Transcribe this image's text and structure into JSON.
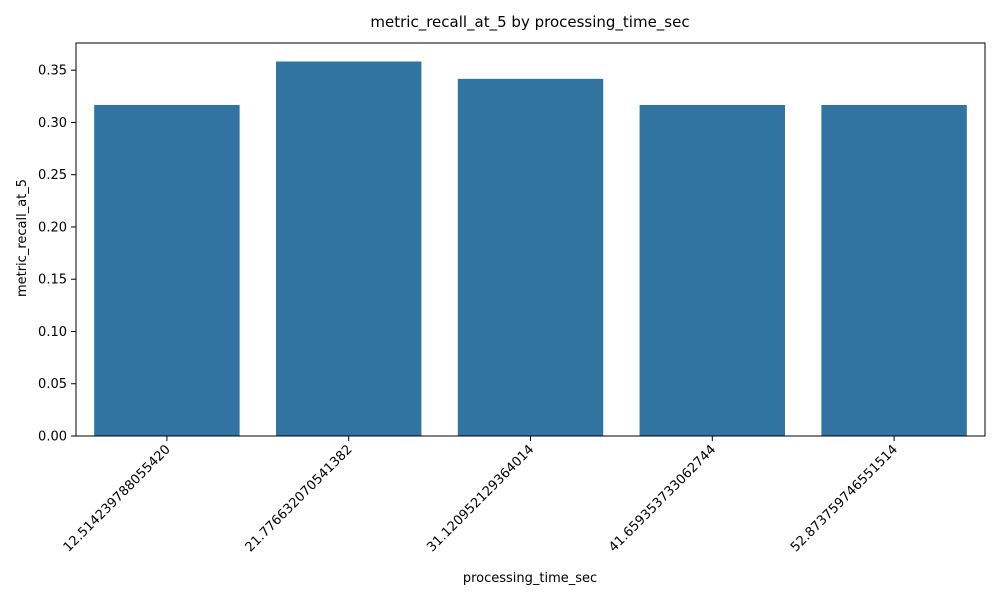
{
  "chart_data": {
    "type": "bar",
    "title": "metric_recall_at_5 by processing_time_sec",
    "xlabel": "processing_time_sec",
    "ylabel": "metric_recall_at_5",
    "categories": [
      "12.514239788055420",
      "21.776632070541382",
      "31.120952129364014",
      "41.659353733062744",
      "52.873759746551514"
    ],
    "values": [
      0.3167,
      0.3583,
      0.3417,
      0.3167,
      0.3167
    ],
    "ylim": [
      0,
      0.376
    ],
    "yticks": [
      0.0,
      0.05,
      0.1,
      0.15,
      0.2,
      0.25,
      0.3,
      0.35
    ],
    "ytick_labels": [
      "0.00",
      "0.05",
      "0.10",
      "0.15",
      "0.20",
      "0.25",
      "0.30",
      "0.35"
    ],
    "grid": false,
    "legend": "none",
    "bar_color": "#3274a1"
  }
}
